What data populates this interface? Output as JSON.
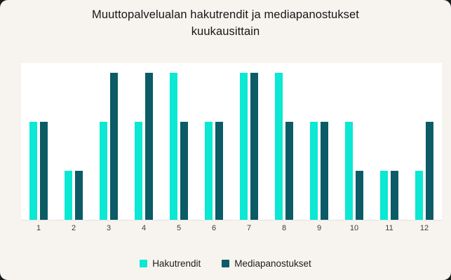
{
  "card": {
    "background": "#f7f4f0",
    "plot_background": "#ffffff"
  },
  "title": {
    "line1": "Muuttopalvelualan hakutrendit ja mediapanostukset",
    "line2": "kuukausittain"
  },
  "chart_data": {
    "type": "bar",
    "title": "Muuttopalvelualan hakutrendit ja mediapanostukset kuukausittain",
    "categories": [
      "1",
      "2",
      "3",
      "4",
      "5",
      "6",
      "7",
      "8",
      "9",
      "10",
      "11",
      "12"
    ],
    "series": [
      {
        "name": "Hakutrendit",
        "color": "#0be8d3",
        "values": [
          2,
          1,
          2,
          2,
          3,
          2,
          3,
          3,
          2,
          2,
          1,
          1
        ]
      },
      {
        "name": "Mediapanostukset",
        "color": "#0b5c66",
        "values": [
          2,
          1,
          3,
          3,
          2,
          2,
          3,
          2,
          2,
          1,
          1,
          2
        ]
      }
    ],
    "xlabel": "",
    "ylabel": "",
    "ylim": [
      0,
      3
    ],
    "y_axis_visible": false,
    "gridlines": false,
    "legend_position": "bottom"
  }
}
